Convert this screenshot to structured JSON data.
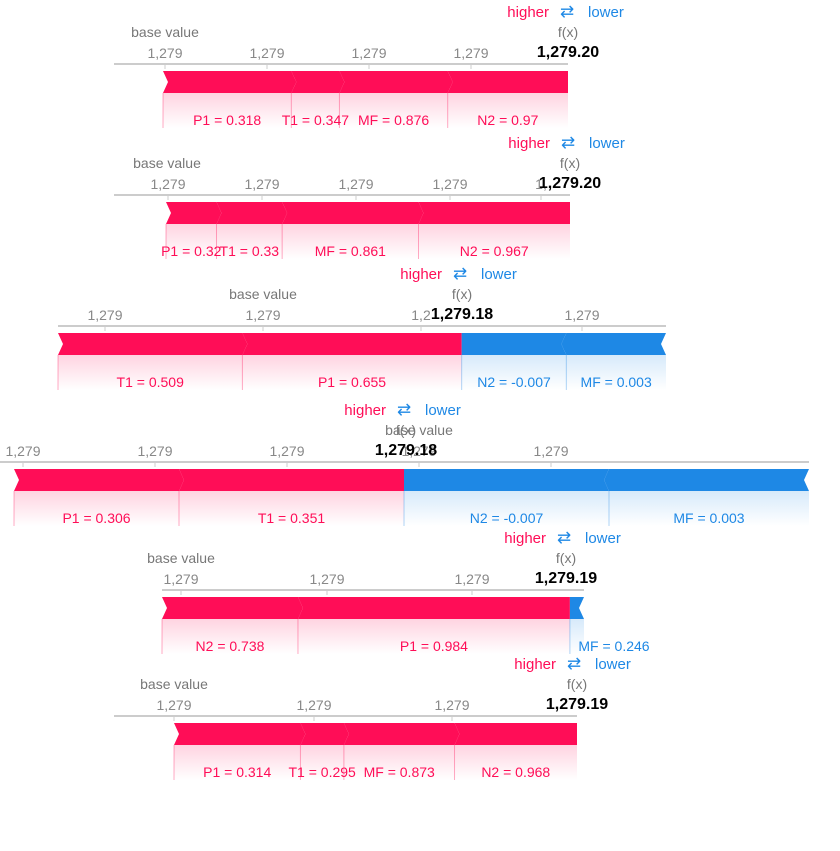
{
  "colors": {
    "positive": "#ff0d57",
    "negative": "#1e88e5",
    "axis": "#cccccc",
    "tick_text": "#888888",
    "label_text": "#777777",
    "value_text": "#000000"
  },
  "legend": {
    "higher": "higher",
    "lower": "lower",
    "arrows": "⇄"
  },
  "base_value_label": "base value",
  "fx_label": "f(x)",
  "chart_data": [
    {
      "type": "force",
      "output_value_label": "1,279.20",
      "tick_labels": [
        "1,279",
        "1,279",
        "1,279",
        "1,279"
      ],
      "features": [
        {
          "label": "P1 = 0.318",
          "effect": "positive",
          "size": 0.16
        },
        {
          "label": "T1 = 0.347",
          "effect": "positive",
          "size": 0.06
        },
        {
          "label": "MF = 0.876",
          "effect": "positive",
          "size": 0.135
        },
        {
          "label": "N2 = 0.97",
          "effect": "positive",
          "size": 0.15
        }
      ]
    },
    {
      "type": "force",
      "output_value_label": "1,279.20",
      "tick_labels": [
        "1,279",
        "1,279",
        "1,279",
        "1,279",
        "1,"
      ],
      "features": [
        {
          "label": "P1 = 0.32",
          "effect": "positive",
          "size": 0.05
        },
        {
          "label": "T1 = 0.33",
          "effect": "positive",
          "size": 0.065
        },
        {
          "label": "MF = 0.861",
          "effect": "positive",
          "size": 0.135
        },
        {
          "label": "N2 = 0.967",
          "effect": "positive",
          "size": 0.15
        }
      ]
    },
    {
      "type": "force",
      "output_value_label": "1,279.18",
      "tick_labels": [
        "1,279",
        "1,279",
        "1,2",
        "1,279"
      ],
      "features": [
        {
          "label": "T1 = 0.509",
          "effect": "positive",
          "size": 0.185
        },
        {
          "label": "P1 = 0.655",
          "effect": "positive",
          "size": 0.22
        },
        {
          "label": "N2 = -0.007",
          "effect": "negative",
          "size": 0.105
        },
        {
          "label": "MF = 0.003",
          "effect": "negative",
          "size": 0.1
        }
      ]
    },
    {
      "type": "force",
      "output_value_label": "1,279.18",
      "tick_labels": [
        "1,279",
        "1,279",
        "1,279",
        "1,279",
        "1,279"
      ],
      "features": [
        {
          "label": "P1 = 0.306",
          "effect": "positive",
          "size": 0.165
        },
        {
          "label": "T1 = 0.351",
          "effect": "positive",
          "size": 0.225
        },
        {
          "label": "N2 = -0.007",
          "effect": "negative",
          "size": 0.205
        },
        {
          "label": "MF = 0.003",
          "effect": "negative",
          "size": 0.2
        }
      ]
    },
    {
      "type": "force",
      "output_value_label": "1,279.19",
      "tick_labels": [
        "1,279",
        "1,279",
        "1,279"
      ],
      "features": [
        {
          "label": "N2 = 0.738",
          "effect": "positive",
          "size": 0.135
        },
        {
          "label": "P1 = 0.984",
          "effect": "positive",
          "size": 0.27
        },
        {
          "label": "MF = 0.246",
          "effect": "negative",
          "size": 0.014
        }
      ]
    },
    {
      "type": "force",
      "output_value_label": "1,279.19",
      "tick_labels": [
        "1,279",
        "1,279",
        "1,279"
      ],
      "features": [
        {
          "label": "P1 = 0.314",
          "effect": "positive",
          "size": 0.16
        },
        {
          "label": "T1 = 0.295",
          "effect": "positive",
          "size": 0.055
        },
        {
          "label": "MF = 0.873",
          "effect": "positive",
          "size": 0.14
        },
        {
          "label": "N2 = 0.968",
          "effect": "positive",
          "size": 0.155
        }
      ]
    }
  ]
}
